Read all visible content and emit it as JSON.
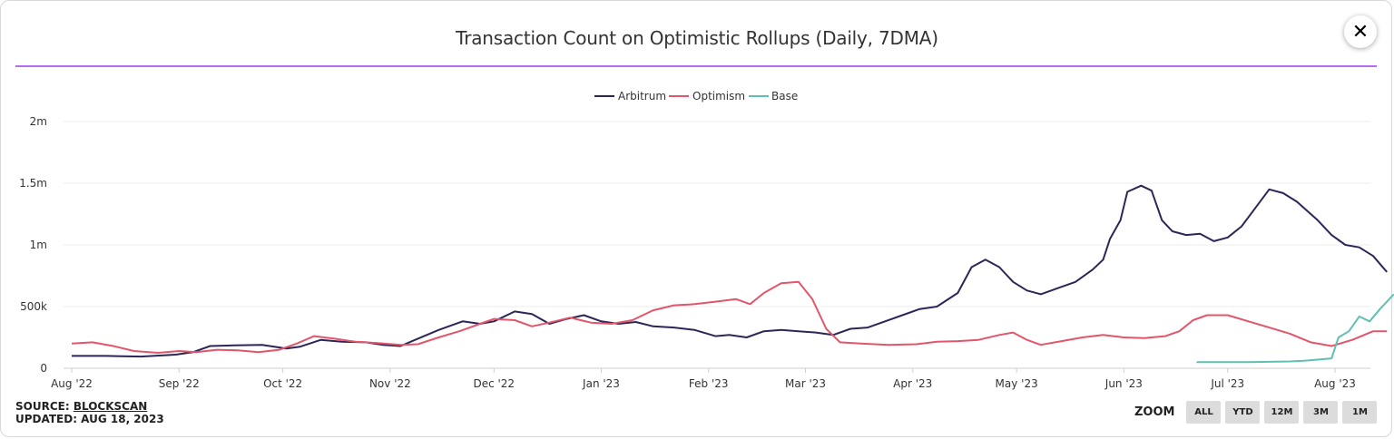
{
  "title": "Transaction Count on Optimistic Rollups (Daily, 7DMA)",
  "close_glyph": "✕",
  "source_label": "SOURCE:",
  "source_link": "BLOCKSCAN",
  "updated_label": "UPDATED: AUG 18, 2023",
  "zoom_label": "ZOOM",
  "zoom_buttons": [
    "ALL",
    "YTD",
    "12M",
    "3M",
    "1M"
  ],
  "colors": {
    "arbitrum": "#2b2657",
    "optimism": "#e2556a",
    "base": "#5fc0b2",
    "accent_rule": "#b36df0"
  },
  "chart_data": {
    "type": "line",
    "title": "Transaction Count on Optimistic Rollups (Daily, 7DMA)",
    "xlabel": "",
    "ylabel": "",
    "x_ticks": [
      "Aug '22",
      "Sep '22",
      "Oct '22",
      "Nov '22",
      "Dec '22",
      "Jan '23",
      "Feb '23",
      "Mar '23",
      "Apr '23",
      "May '23",
      "Jun '23",
      "Jul '23",
      "Aug '23"
    ],
    "x_tick_days": [
      0,
      31,
      61,
      92,
      122,
      153,
      184,
      212,
      243,
      273,
      304,
      334,
      365
    ],
    "y_ticks": [
      0,
      500000,
      1000000,
      1500000,
      2000000
    ],
    "y_tick_labels": [
      "0",
      "500k",
      "1m",
      "1.5m",
      "2m"
    ],
    "ylim": [
      0,
      2000000
    ],
    "xlim_days": [
      0,
      382
    ],
    "grid": true,
    "legend_position": "top-center",
    "series": [
      {
        "name": "Arbitrum",
        "color": "#2b2657",
        "points": [
          [
            0,
            100000
          ],
          [
            10,
            100000
          ],
          [
            20,
            95000
          ],
          [
            30,
            110000
          ],
          [
            35,
            130000
          ],
          [
            40,
            180000
          ],
          [
            47,
            185000
          ],
          [
            55,
            190000
          ],
          [
            62,
            160000
          ],
          [
            66,
            175000
          ],
          [
            72,
            230000
          ],
          [
            78,
            215000
          ],
          [
            85,
            210000
          ],
          [
            90,
            190000
          ],
          [
            95,
            180000
          ],
          [
            100,
            240000
          ],
          [
            106,
            310000
          ],
          [
            113,
            380000
          ],
          [
            118,
            360000
          ],
          [
            122,
            380000
          ],
          [
            128,
            460000
          ],
          [
            133,
            440000
          ],
          [
            138,
            360000
          ],
          [
            143,
            400000
          ],
          [
            148,
            430000
          ],
          [
            153,
            380000
          ],
          [
            158,
            360000
          ],
          [
            163,
            375000
          ],
          [
            168,
            340000
          ],
          [
            174,
            330000
          ],
          [
            180,
            310000
          ],
          [
            186,
            260000
          ],
          [
            190,
            270000
          ],
          [
            195,
            250000
          ],
          [
            200,
            300000
          ],
          [
            205,
            310000
          ],
          [
            210,
            300000
          ],
          [
            215,
            290000
          ],
          [
            220,
            270000
          ],
          [
            225,
            320000
          ],
          [
            230,
            330000
          ],
          [
            235,
            380000
          ],
          [
            240,
            430000
          ],
          [
            245,
            480000
          ],
          [
            250,
            500000
          ],
          [
            256,
            610000
          ],
          [
            260,
            820000
          ],
          [
            264,
            880000
          ],
          [
            268,
            820000
          ],
          [
            272,
            700000
          ],
          [
            276,
            630000
          ],
          [
            280,
            600000
          ],
          [
            285,
            650000
          ],
          [
            290,
            700000
          ],
          [
            295,
            800000
          ],
          [
            298,
            880000
          ],
          [
            300,
            1050000
          ],
          [
            303,
            1200000
          ],
          [
            305,
            1430000
          ],
          [
            309,
            1480000
          ],
          [
            312,
            1440000
          ],
          [
            315,
            1200000
          ],
          [
            318,
            1110000
          ],
          [
            322,
            1080000
          ],
          [
            326,
            1090000
          ],
          [
            330,
            1030000
          ],
          [
            334,
            1060000
          ],
          [
            338,
            1150000
          ],
          [
            342,
            1300000
          ],
          [
            346,
            1450000
          ],
          [
            350,
            1420000
          ],
          [
            354,
            1350000
          ],
          [
            360,
            1200000
          ],
          [
            364,
            1080000
          ],
          [
            368,
            1000000
          ],
          [
            372,
            980000
          ],
          [
            376,
            910000
          ],
          [
            380,
            780000
          ]
        ]
      },
      {
        "name": "Optimism",
        "color": "#e2556a",
        "points": [
          [
            0,
            200000
          ],
          [
            6,
            210000
          ],
          [
            12,
            180000
          ],
          [
            18,
            140000
          ],
          [
            25,
            125000
          ],
          [
            31,
            140000
          ],
          [
            36,
            130000
          ],
          [
            42,
            150000
          ],
          [
            48,
            145000
          ],
          [
            54,
            130000
          ],
          [
            60,
            150000
          ],
          [
            65,
            200000
          ],
          [
            70,
            260000
          ],
          [
            76,
            240000
          ],
          [
            82,
            215000
          ],
          [
            88,
            205000
          ],
          [
            95,
            190000
          ],
          [
            100,
            195000
          ],
          [
            106,
            250000
          ],
          [
            112,
            300000
          ],
          [
            118,
            360000
          ],
          [
            122,
            400000
          ],
          [
            128,
            390000
          ],
          [
            133,
            340000
          ],
          [
            138,
            370000
          ],
          [
            144,
            410000
          ],
          [
            150,
            370000
          ],
          [
            156,
            360000
          ],
          [
            162,
            390000
          ],
          [
            168,
            470000
          ],
          [
            174,
            510000
          ],
          [
            180,
            520000
          ],
          [
            186,
            540000
          ],
          [
            192,
            560000
          ],
          [
            196,
            520000
          ],
          [
            200,
            610000
          ],
          [
            205,
            690000
          ],
          [
            210,
            700000
          ],
          [
            214,
            560000
          ],
          [
            218,
            320000
          ],
          [
            222,
            210000
          ],
          [
            228,
            200000
          ],
          [
            236,
            190000
          ],
          [
            244,
            195000
          ],
          [
            250,
            215000
          ],
          [
            256,
            220000
          ],
          [
            262,
            230000
          ],
          [
            268,
            270000
          ],
          [
            272,
            290000
          ],
          [
            276,
            230000
          ],
          [
            280,
            190000
          ],
          [
            286,
            220000
          ],
          [
            292,
            250000
          ],
          [
            298,
            270000
          ],
          [
            304,
            250000
          ],
          [
            310,
            245000
          ],
          [
            316,
            260000
          ],
          [
            320,
            300000
          ],
          [
            324,
            390000
          ],
          [
            328,
            430000
          ],
          [
            334,
            430000
          ],
          [
            340,
            380000
          ],
          [
            346,
            330000
          ],
          [
            352,
            280000
          ],
          [
            358,
            210000
          ],
          [
            364,
            180000
          ],
          [
            370,
            230000
          ],
          [
            376,
            300000
          ],
          [
            380,
            300000
          ]
        ]
      },
      {
        "name": "Base",
        "color": "#5fc0b2",
        "points": [
          [
            325,
            50000
          ],
          [
            340,
            50000
          ],
          [
            352,
            55000
          ],
          [
            356,
            60000
          ],
          [
            360,
            70000
          ],
          [
            364,
            80000
          ],
          [
            366,
            250000
          ],
          [
            369,
            300000
          ],
          [
            372,
            420000
          ],
          [
            375,
            380000
          ],
          [
            378,
            480000
          ],
          [
            382,
            600000
          ]
        ]
      }
    ]
  }
}
